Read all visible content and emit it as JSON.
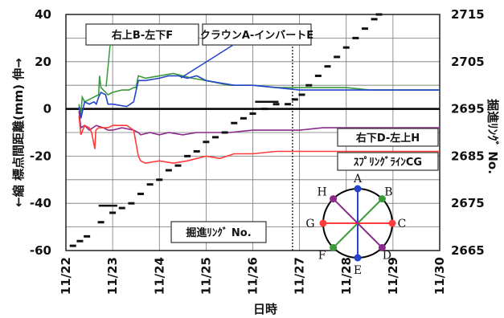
{
  "chart_data": {
    "type": "line",
    "xlabel": "日時",
    "ylabel_left": "←縮 標点間距離(mm) 伸→",
    "ylabel_right": "掘進ﾘﾝｸﾞ No.",
    "x_ticks": [
      "11/22",
      "11/23",
      "11/24",
      "11/25",
      "11/26",
      "11/27",
      "11/28",
      "11/29",
      "11/30"
    ],
    "xlim": [
      0,
      8
    ],
    "ylim_left": [
      -60,
      40
    ],
    "y_ticks_left": [
      "40",
      "20",
      "0",
      "-20",
      "-40",
      "-60"
    ],
    "ylim_right": [
      2665,
      2715
    ],
    "y_ticks_right": [
      "2715",
      "2705",
      "2695",
      "2685",
      "2675",
      "2665"
    ],
    "grid": true,
    "series": [
      {
        "name": "右上B-左下F",
        "color": "#3a9a3a",
        "axis": "left",
        "points": [
          [
            0.28,
            2
          ],
          [
            0.32,
            -3
          ],
          [
            0.35,
            5
          ],
          [
            0.4,
            3
          ],
          [
            0.5,
            4
          ],
          [
            0.6,
            5
          ],
          [
            0.7,
            6
          ],
          [
            0.72,
            14
          ],
          [
            0.75,
            9
          ],
          [
            0.8,
            8
          ],
          [
            0.9,
            6
          ],
          [
            1.0,
            7
          ],
          [
            1.2,
            8
          ],
          [
            1.35,
            8
          ],
          [
            1.45,
            9
          ],
          [
            1.5,
            9
          ],
          [
            1.55,
            14
          ],
          [
            1.7,
            13
          ],
          [
            2.0,
            14
          ],
          [
            2.3,
            15
          ],
          [
            2.5,
            14
          ],
          [
            2.7,
            13
          ],
          [
            3.0,
            12
          ],
          [
            3.5,
            10
          ],
          [
            4.0,
            10
          ],
          [
            4.5,
            9
          ],
          [
            5.0,
            9
          ],
          [
            5.5,
            9
          ],
          [
            6.0,
            9
          ],
          [
            6.5,
            8
          ],
          [
            7.0,
            8
          ],
          [
            8.0,
            8
          ]
        ]
      },
      {
        "name": "クラウンA-インバートE",
        "color": "#2244cc",
        "axis": "left",
        "points": [
          [
            0.28,
            1
          ],
          [
            0.32,
            -4
          ],
          [
            0.4,
            3
          ],
          [
            0.5,
            2
          ],
          [
            0.6,
            3
          ],
          [
            0.65,
            2
          ],
          [
            0.7,
            5
          ],
          [
            0.75,
            7
          ],
          [
            0.85,
            6
          ],
          [
            0.9,
            2
          ],
          [
            1.0,
            2
          ],
          [
            1.3,
            1
          ],
          [
            1.45,
            3
          ],
          [
            1.55,
            12
          ],
          [
            1.7,
            12
          ],
          [
            2.0,
            13
          ],
          [
            2.2,
            14
          ],
          [
            2.4,
            14
          ],
          [
            2.6,
            13
          ],
          [
            2.8,
            14
          ],
          [
            3.0,
            12
          ],
          [
            3.3,
            11
          ],
          [
            3.6,
            10
          ],
          [
            4.0,
            10
          ],
          [
            4.5,
            9
          ],
          [
            5.0,
            8
          ],
          [
            5.5,
            8
          ],
          [
            6.0,
            8
          ],
          [
            6.5,
            8
          ],
          [
            7.0,
            8
          ],
          [
            8.0,
            8
          ]
        ]
      },
      {
        "name": "右下D-左上H",
        "color": "#8a2a8a",
        "axis": "left",
        "points": [
          [
            0.28,
            -1
          ],
          [
            0.32,
            -8
          ],
          [
            0.4,
            -7
          ],
          [
            0.5,
            -9
          ],
          [
            0.65,
            -7
          ],
          [
            0.8,
            -8
          ],
          [
            0.9,
            -9
          ],
          [
            1.0,
            -9
          ],
          [
            1.2,
            -8
          ],
          [
            1.45,
            -9
          ],
          [
            1.55,
            -10
          ],
          [
            1.6,
            -11
          ],
          [
            1.8,
            -10
          ],
          [
            2.0,
            -11
          ],
          [
            2.2,
            -10
          ],
          [
            2.5,
            -11
          ],
          [
            2.8,
            -10
          ],
          [
            3.0,
            -10
          ],
          [
            3.5,
            -10
          ],
          [
            4.0,
            -9
          ],
          [
            4.5,
            -9
          ],
          [
            5.0,
            -9
          ],
          [
            5.5,
            -8
          ],
          [
            6.0,
            -8
          ],
          [
            7.0,
            -8
          ],
          [
            8.0,
            -8
          ]
        ]
      },
      {
        "name": "ｽﾌﾟﾘﾝｸﾞﾗｲﾝCG",
        "color": "#ff3b3b",
        "axis": "left",
        "points": [
          [
            0.28,
            -3
          ],
          [
            0.32,
            -11
          ],
          [
            0.4,
            -7
          ],
          [
            0.5,
            -8
          ],
          [
            0.55,
            -10
          ],
          [
            0.62,
            -17
          ],
          [
            0.64,
            -9
          ],
          [
            0.7,
            -8
          ],
          [
            0.9,
            -8
          ],
          [
            1.0,
            -7
          ],
          [
            1.3,
            -7
          ],
          [
            1.45,
            -9
          ],
          [
            1.55,
            -20
          ],
          [
            1.6,
            -22
          ],
          [
            1.7,
            -23
          ],
          [
            2.0,
            -22
          ],
          [
            2.3,
            -23
          ],
          [
            2.6,
            -22
          ],
          [
            3.0,
            -20
          ],
          [
            3.3,
            -21
          ],
          [
            3.6,
            -19
          ],
          [
            4.0,
            -19
          ],
          [
            4.5,
            -18
          ],
          [
            5.0,
            -18
          ],
          [
            5.5,
            -18
          ],
          [
            6.0,
            -18
          ],
          [
            7.0,
            -18
          ],
          [
            8.0,
            -18
          ]
        ]
      },
      {
        "name": "掘進ﾘﾝｸﾞ No.",
        "color": "#111111",
        "axis": "right",
        "style": "markers",
        "points": [
          [
            0.15,
            2666
          ],
          [
            0.3,
            2667
          ],
          [
            0.45,
            2668
          ],
          [
            0.75,
            2671
          ],
          [
            1.0,
            2673
          ],
          [
            1.2,
            2674
          ],
          [
            1.4,
            2675
          ],
          [
            1.6,
            2677
          ],
          [
            1.8,
            2679
          ],
          [
            2.0,
            2680
          ],
          [
            2.2,
            2682
          ],
          [
            2.4,
            2683
          ],
          [
            2.6,
            2685
          ],
          [
            2.8,
            2686
          ],
          [
            3.0,
            2688
          ],
          [
            3.2,
            2689
          ],
          [
            3.4,
            2690
          ],
          [
            3.6,
            2692
          ],
          [
            3.8,
            2693
          ],
          [
            4.0,
            2694
          ],
          [
            4.25,
            2695
          ],
          [
            4.5,
            2696
          ],
          [
            4.75,
            2696
          ],
          [
            4.9,
            2697
          ],
          [
            5.05,
            2698
          ],
          [
            5.2,
            2700
          ],
          [
            5.4,
            2702
          ],
          [
            5.6,
            2704
          ],
          [
            5.8,
            2706
          ],
          [
            6.0,
            2708
          ],
          [
            6.2,
            2710
          ],
          [
            6.4,
            2712
          ],
          [
            6.6,
            2714
          ],
          [
            6.7,
            2715
          ]
        ]
      }
    ],
    "annotations": [
      {
        "text": "掘進ﾘﾝｸﾞ No.",
        "kind": "boxed-label"
      },
      {
        "text": "A"
      },
      {
        "text": "B"
      },
      {
        "text": "C"
      },
      {
        "text": "D"
      },
      {
        "text": "E"
      },
      {
        "text": "F"
      },
      {
        "text": "G"
      },
      {
        "text": "H"
      }
    ],
    "circle_lines": [
      {
        "from": "A",
        "to": "E",
        "color": "#2244cc"
      },
      {
        "from": "B",
        "to": "F",
        "color": "#3a9a3a"
      },
      {
        "from": "C",
        "to": "G",
        "color": "#ff3b3b"
      },
      {
        "from": "D",
        "to": "H",
        "color": "#8a2a8a"
      }
    ]
  }
}
